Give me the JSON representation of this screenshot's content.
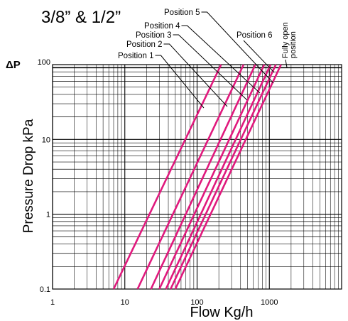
{
  "chart_data": {
    "type": "line",
    "title": "3/8” & 1/2”",
    "xlabel": "Flow Kg/h",
    "ylabel": "Pressure Drop kPa",
    "y_symbol": "ΔP",
    "x_scale": "log",
    "y_scale": "log",
    "xlim": [
      1,
      10000
    ],
    "ylim": [
      0.1,
      100
    ],
    "x_ticks": [
      {
        "value": 1,
        "label": "1"
      },
      {
        "value": 10,
        "label": "10"
      },
      {
        "value": 100,
        "label": "100"
      },
      {
        "value": 1000,
        "label": "1000"
      }
    ],
    "y_ticks": [
      {
        "value": 0.1,
        "label": "0.1"
      },
      {
        "value": 1,
        "label": "1"
      },
      {
        "value": 10,
        "label": "10"
      },
      {
        "value": 100,
        "label": "100"
      }
    ],
    "grid": true,
    "series_color": "#e0197d",
    "series": [
      {
        "name": "Position 1",
        "x": [
          7,
          215
        ],
        "y": [
          0.1,
          100
        ]
      },
      {
        "name": "Position 2",
        "x": [
          15,
          440
        ],
        "y": [
          0.1,
          100
        ]
      },
      {
        "name": "Position 3",
        "x": [
          23,
          640
        ],
        "y": [
          0.1,
          100
        ]
      },
      {
        "name": "Position 4",
        "x": [
          30,
          850
        ],
        "y": [
          0.1,
          100
        ]
      },
      {
        "name": "Position 5",
        "x": [
          37,
          1040
        ],
        "y": [
          0.1,
          100
        ]
      },
      {
        "name": "Position 6",
        "x": [
          43,
          1230
        ],
        "y": [
          0.1,
          100
        ]
      },
      {
        "name": "Fully open position",
        "x": [
          50,
          1450
        ],
        "y": [
          0.1,
          100
        ]
      }
    ]
  }
}
